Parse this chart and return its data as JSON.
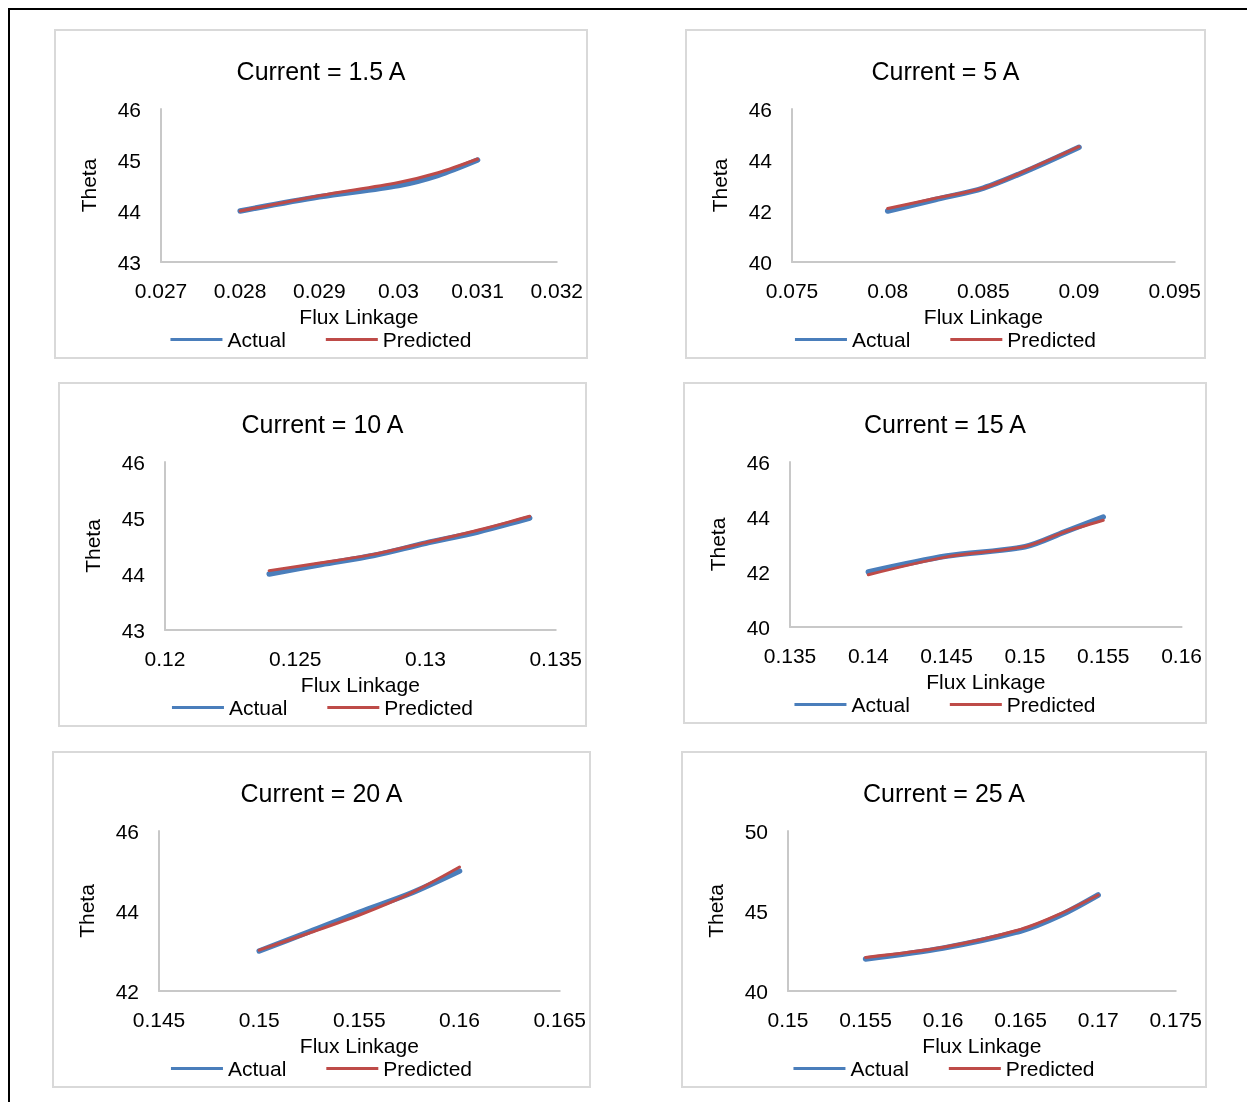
{
  "chart_data": [
    {
      "type": "line",
      "title": "Current = 1.5 A",
      "xlabel": "Flux Linkage",
      "ylabel": "Theta",
      "x": [
        0.028,
        0.029,
        0.03,
        0.0305,
        0.031
      ],
      "xlim": [
        0.027,
        0.032
      ],
      "xticks": [
        0.027,
        0.028,
        0.029,
        0.03,
        0.031,
        0.032
      ],
      "ylim": [
        43,
        46
      ],
      "yticks": [
        43,
        44,
        45,
        46
      ],
      "legend": "bottom",
      "grid": false,
      "marker": "none",
      "line_style": "solid",
      "series": [
        {
          "name": "Actual",
          "color": "#4a7ebb",
          "values": [
            44,
            44.28,
            44.5,
            44.7,
            45
          ]
        },
        {
          "name": "Predicted",
          "color": "#be4b48",
          "values": [
            44,
            44.3,
            44.56,
            44.75,
            45.02
          ]
        }
      ]
    },
    {
      "type": "line",
      "title": "Current = 5 A",
      "xlabel": "Flux Linkage",
      "ylabel": "Theta",
      "x": [
        0.08,
        0.0825,
        0.085,
        0.0875,
        0.09
      ],
      "xlim": [
        0.075,
        0.095
      ],
      "xticks": [
        0.075,
        0.08,
        0.085,
        0.09,
        0.095
      ],
      "ylim": [
        40,
        46
      ],
      "yticks": [
        40,
        42,
        44,
        46
      ],
      "legend": "bottom",
      "grid": false,
      "marker": "none",
      "line_style": "solid",
      "series": [
        {
          "name": "Actual",
          "color": "#4a7ebb",
          "values": [
            42,
            42.45,
            42.9,
            43.65,
            44.5
          ]
        },
        {
          "name": "Predicted",
          "color": "#be4b48",
          "values": [
            42.1,
            42.5,
            42.9,
            43.68,
            44.52
          ]
        }
      ]
    },
    {
      "type": "line",
      "title": "Current = 10 A",
      "xlabel": "Flux Linkage",
      "ylabel": "Theta",
      "x": [
        0.124,
        0.126,
        0.128,
        0.13,
        0.132,
        0.134
      ],
      "xlim": [
        0.12,
        0.135
      ],
      "xticks": [
        0.12,
        0.125,
        0.13,
        0.135
      ],
      "ylim": [
        43,
        46
      ],
      "yticks": [
        43,
        44,
        45,
        46
      ],
      "legend": "bottom",
      "grid": false,
      "marker": "none",
      "line_style": "solid",
      "series": [
        {
          "name": "Actual",
          "color": "#4a7ebb",
          "values": [
            44,
            44.17,
            44.33,
            44.55,
            44.75,
            45
          ]
        },
        {
          "name": "Predicted",
          "color": "#be4b48",
          "values": [
            44.06,
            44.2,
            44.35,
            44.56,
            44.78,
            45.03
          ]
        }
      ]
    },
    {
      "type": "line",
      "title": "Current = 15 A",
      "xlabel": "Flux Linkage",
      "ylabel": "Theta",
      "x": [
        0.14,
        0.145,
        0.15,
        0.1525,
        0.155
      ],
      "xlim": [
        0.135,
        0.16
      ],
      "xticks": [
        0.135,
        0.14,
        0.145,
        0.15,
        0.155,
        0.16
      ],
      "ylim": [
        40,
        46
      ],
      "yticks": [
        40,
        42,
        44,
        46
      ],
      "legend": "bottom",
      "grid": false,
      "marker": "none",
      "line_style": "solid",
      "series": [
        {
          "name": "Actual",
          "color": "#4a7ebb",
          "values": [
            42,
            42.58,
            42.92,
            43.45,
            44
          ]
        },
        {
          "name": "Predicted",
          "color": "#be4b48",
          "values": [
            41.9,
            42.55,
            42.93,
            43.45,
            43.88
          ]
        }
      ]
    },
    {
      "type": "line",
      "title": "Current = 20 A",
      "xlabel": "Flux Linkage",
      "ylabel": "Theta",
      "x": [
        0.15,
        0.1525,
        0.155,
        0.1575,
        0.16
      ],
      "xlim": [
        0.145,
        0.165
      ],
      "xticks": [
        0.145,
        0.15,
        0.155,
        0.16,
        0.165
      ],
      "ylim": [
        42,
        46
      ],
      "yticks": [
        42,
        44,
        46
      ],
      "legend": "bottom",
      "grid": false,
      "marker": "none",
      "line_style": "solid",
      "series": [
        {
          "name": "Actual",
          "color": "#4a7ebb",
          "values": [
            43,
            43.48,
            43.97,
            44.43,
            45
          ]
        },
        {
          "name": "Predicted",
          "color": "#be4b48",
          "values": [
            43.02,
            43.45,
            43.9,
            44.43,
            45.1
          ]
        }
      ]
    },
    {
      "type": "line",
      "title": "Current = 25 A",
      "xlabel": "Flux Linkage",
      "ylabel": "Theta",
      "x": [
        0.155,
        0.16,
        0.165,
        0.1675,
        0.17
      ],
      "xlim": [
        0.15,
        0.175
      ],
      "xticks": [
        0.15,
        0.155,
        0.16,
        0.165,
        0.17,
        0.175
      ],
      "ylim": [
        40,
        50
      ],
      "yticks": [
        40,
        45,
        50
      ],
      "legend": "bottom",
      "grid": false,
      "marker": "none",
      "line_style": "solid",
      "series": [
        {
          "name": "Actual",
          "color": "#4a7ebb",
          "values": [
            42,
            42.68,
            43.75,
            44.7,
            46
          ]
        },
        {
          "name": "Predicted",
          "color": "#be4b48",
          "values": [
            42.1,
            42.73,
            43.85,
            44.8,
            46
          ]
        }
      ]
    }
  ]
}
